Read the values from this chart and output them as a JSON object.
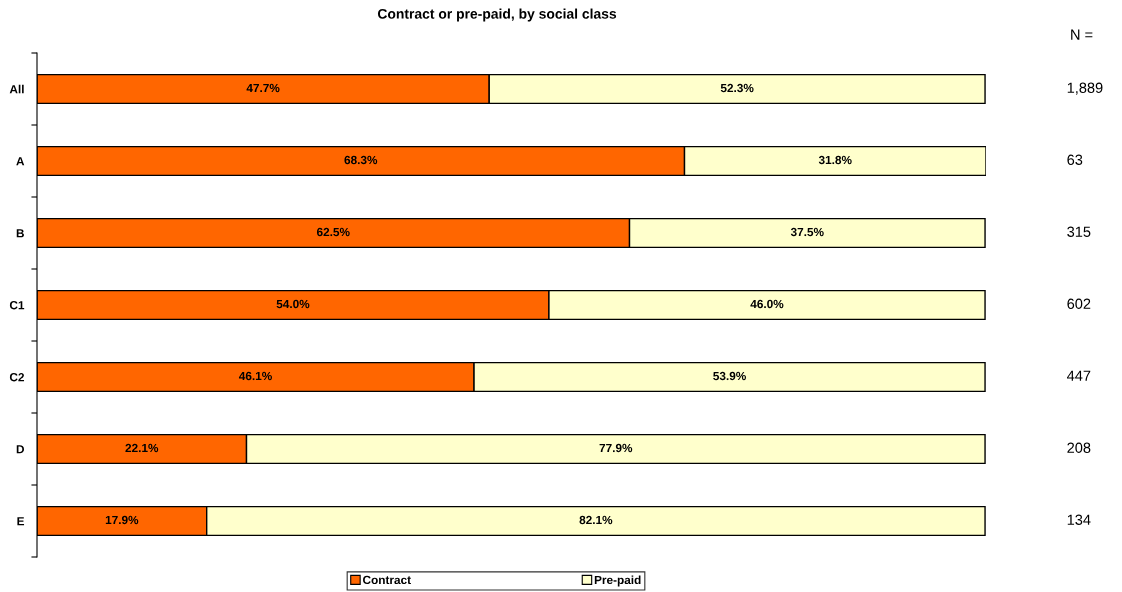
{
  "chart_data": {
    "type": "bar",
    "orientation": "horizontal",
    "stacked": true,
    "title": "Contract or pre-paid, by social class",
    "categories": [
      "All",
      "A",
      "B",
      "C1",
      "C2",
      "D",
      "E"
    ],
    "series": [
      {
        "name": "Contract",
        "color": "#ff6600",
        "values": [
          47.7,
          68.3,
          62.5,
          54.0,
          46.1,
          22.1,
          17.9
        ],
        "value_labels": [
          "47.7%",
          "68.3%",
          "62.5%",
          "54.0%",
          "46.1%",
          "22.1%",
          "17.9%"
        ]
      },
      {
        "name": "Pre-paid",
        "color": "#ffffcc",
        "values": [
          52.3,
          31.8,
          37.5,
          46.0,
          53.9,
          77.9,
          82.1
        ],
        "value_labels": [
          "52.3%",
          "31.8%",
          "37.5%",
          "46.0%",
          "53.9%",
          "77.9%",
          "82.1%"
        ]
      }
    ],
    "xlim": [
      0,
      100.1
    ],
    "tick_labels": "y",
    "legend": "bottom",
    "annotations": [
      "N =",
      "1,889",
      "63",
      "315",
      "602",
      "447",
      "208",
      "134"
    ]
  }
}
